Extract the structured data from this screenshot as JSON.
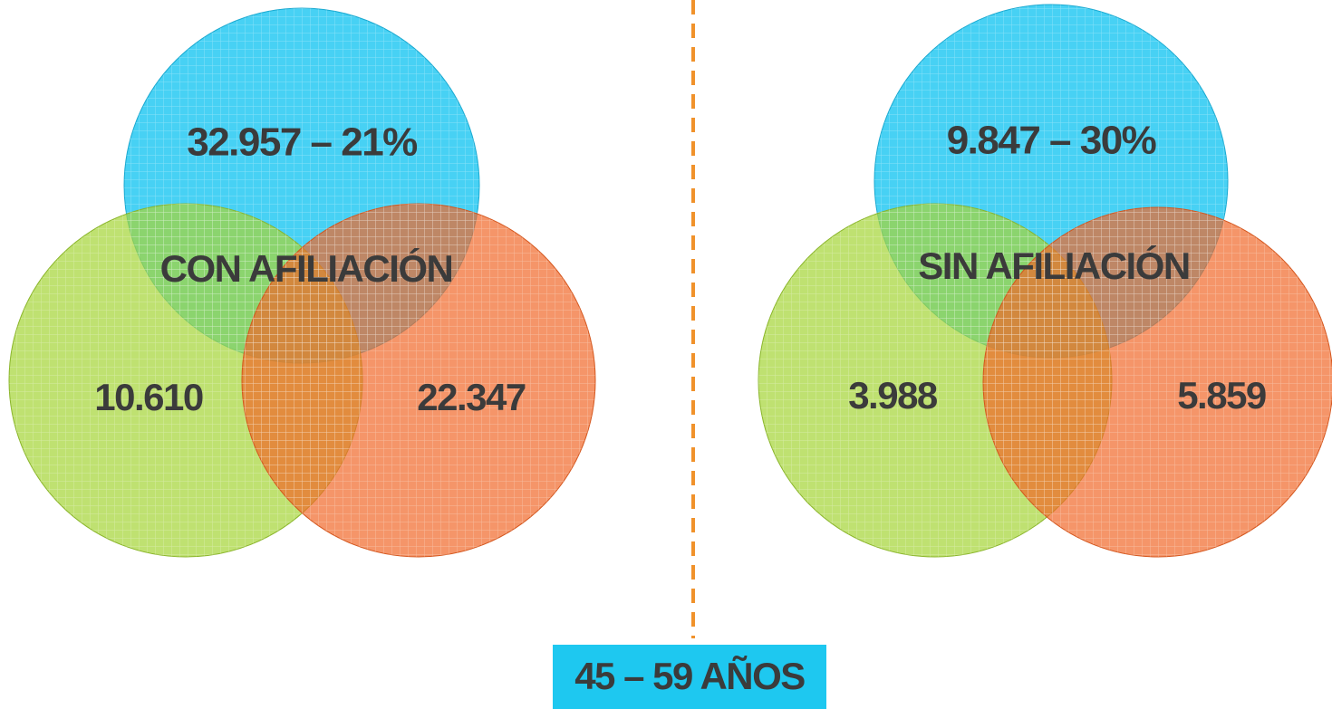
{
  "panels": [
    {
      "top": "32.957 – 21%",
      "center": "CON AFILIACIÓN",
      "left": "10.610",
      "right": "22.347"
    },
    {
      "top": "9.847 – 30%",
      "center": "SIN AFILIACIÓN",
      "left": "3.988",
      "right": "5.859"
    }
  ],
  "footer": {
    "label": "45 – 59 AÑOS"
  }
}
